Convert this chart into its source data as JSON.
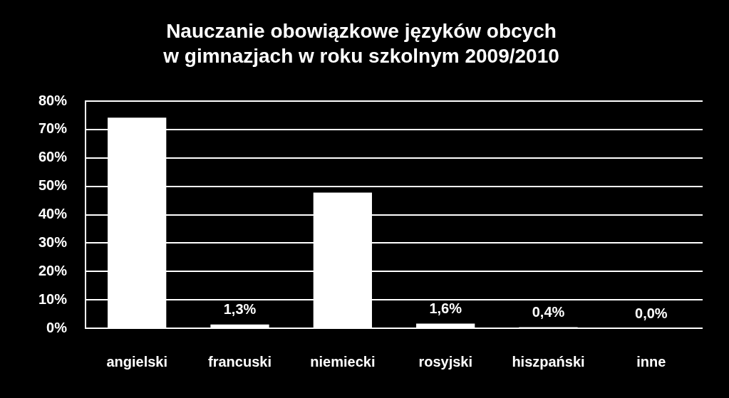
{
  "chart_data": {
    "type": "bar",
    "title": "Nauczanie obowiązkowe języków obcych\nw gimnazjach w roku szkolnym 2009/2010",
    "categories": [
      "angielski",
      "francuski",
      "niemiecki",
      "rosyjski",
      "hiszpański",
      "inne"
    ],
    "values": [
      74.2,
      1.3,
      47.8,
      1.6,
      0.4,
      0.0
    ],
    "value_labels": [
      null,
      "1,3%",
      null,
      "1,6%",
      "0,4%",
      "0,0%"
    ],
    "color": "#ffffff",
    "ylim": [
      0,
      80
    ],
    "yticks": [
      {
        "value": 0,
        "label": "0%"
      },
      {
        "value": 10,
        "label": "10%"
      },
      {
        "value": 20,
        "label": "20%"
      },
      {
        "value": 30,
        "label": "30%"
      },
      {
        "value": 40,
        "label": "40%"
      },
      {
        "value": 50,
        "label": "50%"
      },
      {
        "value": 60,
        "label": "60%"
      },
      {
        "value": 70,
        "label": "70%"
      },
      {
        "value": 80,
        "label": "80%"
      }
    ],
    "grid": "y"
  }
}
